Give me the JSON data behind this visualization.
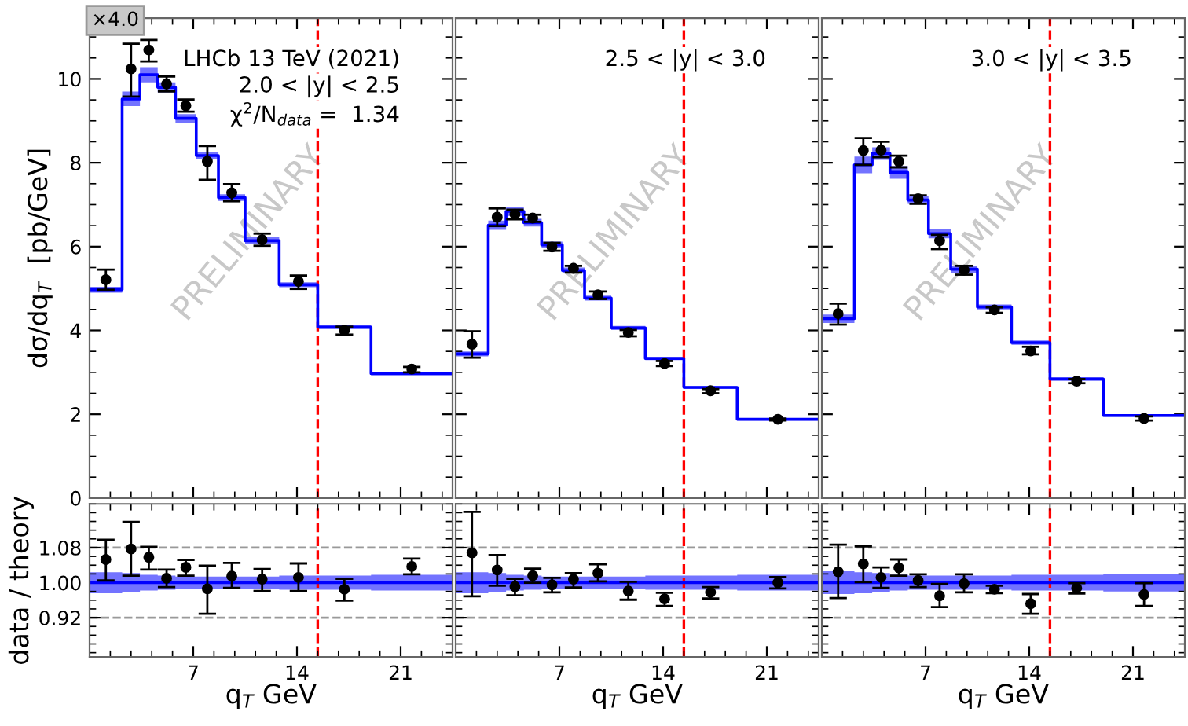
{
  "chart_data": [
    {
      "type": "step",
      "ylabel": "dσ/dq$_{T}$  [pb/GeV]",
      "xlim": [
        0,
        24.5
      ],
      "ylim": [
        0,
        11.45
      ],
      "xticks": [
        7,
        14,
        21
      ],
      "yticks": [
        0,
        2,
        4,
        6,
        8,
        10
      ],
      "tick_labels": "y",
      "grid": false,
      "legend": false,
      "annotations": [
        "×4.0",
        "LHCb 13 TeV (2021)",
        "2.0 < |y| < 2.5",
        "χ$^{2}$/N$_{data}$ =  1.34",
        "PRELIMINARY"
      ],
      "ref_lines": [
        {
          "axis": "x",
          "value": 15.4,
          "color": "#ff0000",
          "line_style": "dashed"
        }
      ],
      "series": [
        {
          "type": "step",
          "color": "#0000ff",
          "x": [
            0,
            2.2,
            3.4,
            4.6,
            5.8,
            7.2,
            8.7,
            10.5,
            12.8,
            15.4,
            19.0,
            24.5
          ],
          "values": [
            4.97,
            9.52,
            10.1,
            9.8,
            9.06,
            8.17,
            7.17,
            6.14,
            5.09,
            4.08,
            2.97,
            2.97
          ],
          "lower": [
            4.9,
            9.35,
            9.92,
            9.68,
            8.96,
            8.08,
            7.09,
            6.06,
            5.03,
            4.03,
            2.93,
            2.93
          ],
          "upper": [
            5.04,
            9.7,
            10.28,
            9.92,
            9.16,
            8.26,
            7.25,
            6.22,
            5.15,
            4.13,
            3.01,
            3.01
          ]
        },
        {
          "type": "scatter",
          "color": "#000000",
          "marker": "circle",
          "x": [
            1.1,
            2.8,
            4.0,
            5.2,
            6.5,
            7.95,
            9.6,
            11.65,
            14.1,
            17.2,
            21.75
          ],
          "values": [
            5.21,
            10.24,
            10.69,
            9.88,
            9.36,
            8.03,
            7.28,
            6.16,
            5.17,
            4.0,
            3.08
          ],
          "errors": [
            [
              4.97,
              5.45
            ],
            [
              9.58,
              10.84
            ],
            [
              10.42,
              10.93
            ],
            [
              9.7,
              10.06
            ],
            [
              9.22,
              9.51
            ],
            [
              7.59,
              8.4
            ],
            [
              7.08,
              7.49
            ],
            [
              6.02,
              6.31
            ],
            [
              4.99,
              5.31
            ],
            [
              3.9,
              4.09
            ],
            [
              3.0,
              3.13
            ]
          ]
        }
      ]
    },
    {
      "type": "step",
      "xlim": [
        0,
        24.5
      ],
      "ylim": [
        0,
        11.45
      ],
      "xticks": [
        7,
        14,
        21
      ],
      "yticks": [
        0,
        2,
        4,
        6,
        8,
        10
      ],
      "tick_labels": false,
      "grid": false,
      "legend": false,
      "annotations": [
        "2.5 < |y| < 3.0",
        "PRELIMINARY"
      ],
      "ref_lines": [
        {
          "axis": "x",
          "value": 15.4,
          "color": "#ff0000",
          "line_style": "dashed"
        }
      ],
      "series": [
        {
          "type": "step",
          "color": "#0000ff",
          "x": [
            0,
            2.2,
            3.4,
            4.6,
            5.8,
            7.2,
            8.7,
            10.5,
            12.8,
            15.4,
            19.0,
            24.5
          ],
          "values": [
            3.44,
            6.51,
            6.84,
            6.57,
            6.04,
            5.43,
            4.77,
            4.06,
            3.33,
            2.64,
            1.88,
            1.88
          ],
          "lower": [
            3.38,
            6.4,
            6.73,
            6.48,
            5.96,
            5.36,
            4.71,
            4.01,
            3.29,
            2.61,
            1.85,
            1.85
          ],
          "upper": [
            3.5,
            6.62,
            6.95,
            6.66,
            6.12,
            5.5,
            4.83,
            4.11,
            3.37,
            2.67,
            1.91,
            1.91
          ]
        },
        {
          "type": "scatter",
          "color": "#000000",
          "marker": "circle",
          "x": [
            1.1,
            2.8,
            4.0,
            5.2,
            6.5,
            7.95,
            9.6,
            11.65,
            14.1,
            17.2,
            21.75
          ],
          "values": [
            3.67,
            6.7,
            6.77,
            6.68,
            5.99,
            5.48,
            4.85,
            3.95,
            3.21,
            2.56,
            1.88
          ],
          "errors": [
            [
              3.35,
              3.98
            ],
            [
              6.49,
              6.91
            ],
            [
              6.65,
              6.88
            ],
            [
              6.59,
              6.76
            ],
            [
              5.9,
              6.09
            ],
            [
              5.38,
              5.54
            ],
            [
              4.75,
              4.93
            ],
            [
              3.86,
              4.01
            ],
            [
              3.15,
              3.27
            ],
            [
              2.5,
              2.6
            ],
            [
              1.85,
              1.9
            ]
          ]
        }
      ]
    },
    {
      "type": "step",
      "xlim": [
        0,
        24.5
      ],
      "ylim": [
        0,
        11.45
      ],
      "xticks": [
        7,
        14,
        21
      ],
      "yticks": [
        0,
        2,
        4,
        6,
        8,
        10
      ],
      "tick_labels": false,
      "grid": false,
      "legend": false,
      "annotations": [
        "3.0 < |y| < 3.5",
        "PRELIMINARY"
      ],
      "ref_lines": [
        {
          "axis": "x",
          "value": 15.4,
          "color": "#ff0000",
          "line_style": "dashed"
        }
      ],
      "series": [
        {
          "type": "step",
          "color": "#0000ff",
          "x": [
            0,
            2.2,
            3.4,
            4.6,
            5.8,
            7.2,
            8.7,
            10.5,
            12.8,
            15.4,
            19.0,
            24.5
          ],
          "values": [
            4.28,
            7.95,
            8.22,
            7.77,
            7.11,
            6.31,
            5.46,
            4.56,
            3.71,
            2.84,
            1.97,
            1.97
          ],
          "lower": [
            4.18,
            7.75,
            8.07,
            7.62,
            7.02,
            6.2,
            5.38,
            4.5,
            3.66,
            2.8,
            1.94,
            1.94
          ],
          "upper": [
            4.38,
            8.15,
            8.37,
            7.92,
            7.2,
            6.42,
            5.54,
            4.62,
            3.76,
            2.88,
            2.0,
            2.0
          ]
        },
        {
          "type": "scatter",
          "color": "#000000",
          "marker": "circle",
          "x": [
            1.1,
            2.8,
            4.0,
            5.2,
            6.5,
            7.95,
            9.6,
            11.65,
            14.1,
            17.2,
            21.75
          ],
          "values": [
            4.4,
            8.29,
            8.3,
            8.03,
            7.14,
            6.14,
            5.44,
            4.49,
            3.51,
            2.79,
            1.9
          ],
          "errors": [
            [
              4.14,
              4.64
            ],
            [
              7.95,
              8.59
            ],
            [
              8.13,
              8.5
            ],
            [
              7.89,
              8.17
            ],
            [
              7.02,
              7.22
            ],
            [
              5.94,
              6.28
            ],
            [
              5.33,
              5.54
            ],
            [
              4.42,
              4.55
            ],
            [
              3.43,
              3.61
            ],
            [
              2.74,
              2.84
            ],
            [
              1.85,
              1.95
            ]
          ]
        }
      ]
    },
    {
      "type": "step",
      "xlabel": "q$_{T}$ GeV",
      "ylabel": "data / theory",
      "xlim": [
        0,
        24.5
      ],
      "ylim": [
        0.83,
        1.18
      ],
      "xticks": [
        7,
        14,
        21
      ],
      "yticks": [
        0.92,
        {
          "value": 1.0,
          "label": "1.00"
        },
        1.08
      ],
      "grid": false,
      "legend": false,
      "ref_lines": [
        {
          "axis": "y",
          "value": 1.08,
          "color": "#999999",
          "line_style": "dashed"
        },
        {
          "axis": "y",
          "value": 0.92,
          "color": "#999999",
          "line_style": "dashed"
        },
        {
          "axis": "x",
          "value": 15.4,
          "color": "#ff0000",
          "line_style": "dashed"
        }
      ],
      "series": [
        {
          "type": "step",
          "color": "#0000ff",
          "x": [
            0,
            2.2,
            3.4,
            4.6,
            5.8,
            7.2,
            8.7,
            10.5,
            12.8,
            15.4,
            19.0,
            24.5
          ],
          "values": [
            1.0,
            1.0,
            1.0,
            1.0,
            1.0,
            1.0,
            1.0,
            1.0,
            1.0,
            1.0,
            1.0,
            1.0
          ],
          "lower": [
            0.976,
            0.978,
            0.982,
            0.984,
            0.986,
            0.986,
            0.986,
            0.986,
            0.984,
            0.984,
            0.982,
            0.982
          ],
          "upper": [
            1.024,
            1.022,
            1.018,
            1.016,
            1.014,
            1.014,
            1.014,
            1.014,
            1.016,
            1.016,
            1.018,
            1.018
          ]
        },
        {
          "type": "scatter",
          "color": "#000000",
          "marker": "circle",
          "x": [
            1.1,
            2.8,
            4.0,
            5.2,
            6.5,
            7.95,
            9.6,
            11.65,
            14.1,
            17.2,
            21.75
          ],
          "values": [
            1.053,
            1.077,
            1.058,
            1.01,
            1.035,
            0.986,
            1.015,
            1.008,
            1.012,
            0.985,
            1.037
          ],
          "errors": [
            [
              1.005,
              1.098
            ],
            [
              1.016,
              1.139
            ],
            [
              1.03,
              1.082
            ],
            [
              0.99,
              1.03
            ],
            [
              1.016,
              1.052
            ],
            [
              0.929,
              1.039
            ],
            [
              0.988,
              1.045
            ],
            [
              0.981,
              1.031
            ],
            [
              0.981,
              1.044
            ],
            [
              0.959,
              1.009
            ],
            [
              1.019,
              1.055
            ]
          ]
        }
      ]
    },
    {
      "type": "step",
      "xlabel": "q$_{T}$ GeV",
      "xlim": [
        0,
        24.5
      ],
      "ylim": [
        0.83,
        1.18
      ],
      "xticks": [
        7,
        14,
        21
      ],
      "yticks": [
        0.92,
        1.0,
        1.08
      ],
      "tick_labels": "x",
      "grid": false,
      "legend": false,
      "ref_lines": [
        {
          "axis": "y",
          "value": 1.08,
          "color": "#999999",
          "line_style": "dashed"
        },
        {
          "axis": "y",
          "value": 0.92,
          "color": "#999999",
          "line_style": "dashed"
        },
        {
          "axis": "x",
          "value": 15.4,
          "color": "#ff0000",
          "line_style": "dashed"
        }
      ],
      "series": [
        {
          "type": "step",
          "color": "#0000ff",
          "x": [
            0,
            2.2,
            3.4,
            4.6,
            5.8,
            7.2,
            8.7,
            10.5,
            12.8,
            15.4,
            19.0,
            24.5
          ],
          "values": [
            1.0,
            1.0,
            1.0,
            1.0,
            1.0,
            1.0,
            1.0,
            1.0,
            1.0,
            1.0,
            1.0,
            1.0
          ],
          "lower": [
            0.976,
            0.978,
            0.982,
            0.984,
            0.986,
            0.986,
            0.986,
            0.986,
            0.984,
            0.984,
            0.982,
            0.978
          ],
          "upper": [
            1.024,
            1.022,
            1.018,
            1.016,
            1.014,
            1.014,
            1.014,
            1.014,
            1.016,
            1.016,
            1.018,
            1.022
          ]
        },
        {
          "type": "scatter",
          "color": "#000000",
          "marker": "circle",
          "x": [
            1.1,
            2.8,
            4.0,
            5.2,
            6.5,
            7.95,
            9.6,
            11.65,
            14.1,
            17.2,
            21.75
          ],
          "values": [
            1.068,
            1.029,
            0.991,
            1.016,
            0.995,
            1.008,
            1.022,
            0.981,
            0.963,
            0.978,
            1.0
          ],
          "errors": [
            [
              0.969,
              1.162
            ],
            [
              0.993,
              1.063
            ],
            [
              0.971,
              1.009
            ],
            [
              1.0,
              1.032
            ],
            [
              0.978,
              1.011
            ],
            [
              0.989,
              1.022
            ],
            [
              1.003,
              1.042
            ],
            [
              0.961,
              1.002
            ],
            [
              0.947,
              0.977
            ],
            [
              0.964,
              0.99
            ],
            [
              0.987,
              1.013
            ]
          ]
        }
      ]
    },
    {
      "type": "step",
      "xlabel": "q$_{T}$ GeV",
      "xlim": [
        0,
        24.5
      ],
      "ylim": [
        0.83,
        1.18
      ],
      "xticks": [
        7,
        14,
        21
      ],
      "yticks": [
        0.92,
        1.0,
        1.08
      ],
      "tick_labels": "x",
      "grid": false,
      "legend": false,
      "ref_lines": [
        {
          "axis": "y",
          "value": 1.08,
          "color": "#999999",
          "line_style": "dashed"
        },
        {
          "axis": "y",
          "value": 0.92,
          "color": "#999999",
          "line_style": "dashed"
        },
        {
          "axis": "x",
          "value": 15.4,
          "color": "#ff0000",
          "line_style": "dashed"
        }
      ],
      "series": [
        {
          "type": "step",
          "color": "#0000ff",
          "x": [
            0,
            2.2,
            3.4,
            4.6,
            5.8,
            7.2,
            8.7,
            10.5,
            12.8,
            15.4,
            19.0,
            24.5
          ],
          "values": [
            1.0,
            1.0,
            1.0,
            1.0,
            1.0,
            1.0,
            1.0,
            1.0,
            1.0,
            1.0,
            1.0,
            1.0
          ],
          "lower": [
            0.974,
            0.976,
            0.978,
            0.982,
            0.984,
            0.984,
            0.984,
            0.984,
            0.982,
            0.982,
            0.98,
            0.98
          ],
          "upper": [
            1.026,
            1.024,
            1.022,
            1.018,
            1.016,
            1.016,
            1.016,
            1.016,
            1.018,
            1.018,
            1.02,
            1.02
          ]
        },
        {
          "type": "scatter",
          "color": "#000000",
          "marker": "circle",
          "x": [
            1.1,
            2.8,
            4.0,
            5.2,
            6.5,
            7.95,
            9.6,
            11.65,
            14.1,
            17.2,
            21.75
          ],
          "values": [
            1.025,
            1.043,
            1.012,
            1.034,
            1.005,
            0.97,
            0.998,
            0.985,
            0.952,
            0.988,
            0.973
          ],
          "errors": [
            [
              0.965,
              1.087
            ],
            [
              1.001,
              1.083
            ],
            [
              0.988,
              1.035
            ],
            [
              1.016,
              1.053
            ],
            [
              0.99,
              1.019
            ],
            [
              0.944,
              0.997
            ],
            [
              0.978,
              1.019
            ],
            [
              0.976,
              0.993
            ],
            [
              0.929,
              0.974
            ],
            [
              0.975,
              0.999
            ],
            [
              0.947,
              0.999
            ]
          ]
        }
      ]
    }
  ]
}
